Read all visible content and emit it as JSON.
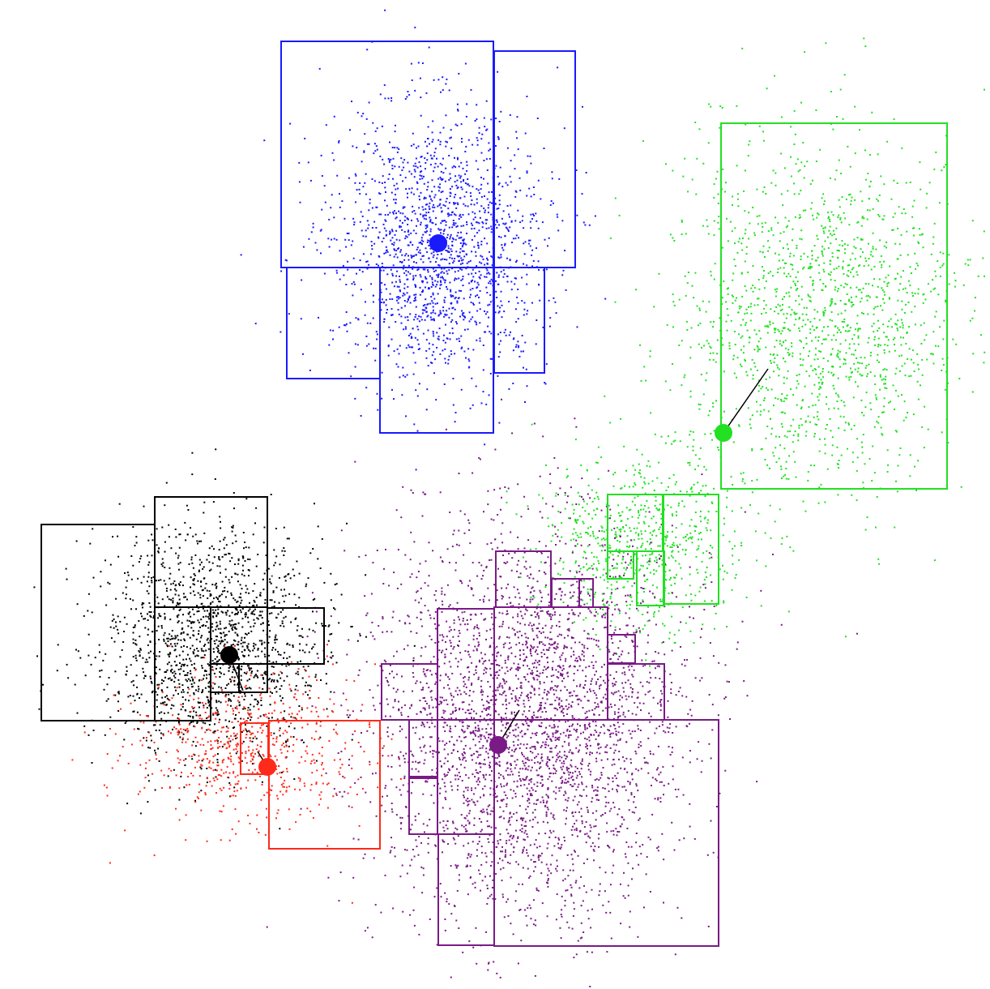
{
  "clusters": [
    {
      "name": "blue",
      "color": "#1a1aff",
      "dots": 1700
    },
    {
      "name": "green",
      "color": "#22e022",
      "dots": 2300
    },
    {
      "name": "black",
      "color": "#000000",
      "dots": 1600
    },
    {
      "name": "red",
      "color": "#ff2a1a",
      "dots": 650
    },
    {
      "name": "purple",
      "color": "#7a1a86",
      "dots": 3400
    }
  ]
}
